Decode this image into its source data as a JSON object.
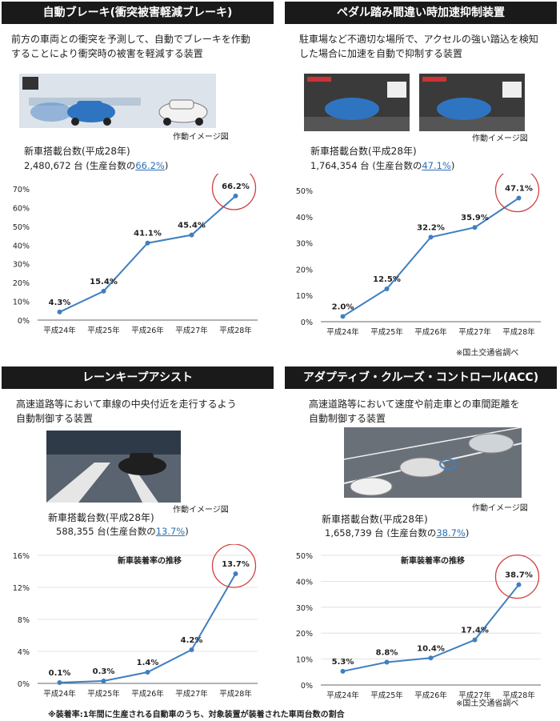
{
  "panels": [
    {
      "id": "aeb",
      "title": "自動ブレーキ(衝突被害軽減ブレーキ)",
      "desc": [
        "前方の車両との衝突を予測して、自動でブレーキを作動",
        "することにより衝突時の被害を軽減する装置"
      ],
      "illustration_caption": "作動イメージ図",
      "units_label": "新車搭載台数(平成28年)",
      "units_value": "2,480,672 台 (生産台数の",
      "units_pct": "66.2%",
      "units_close": ")",
      "source_note": ""
    },
    {
      "id": "pedal",
      "title": "ペダル踏み間違い時加速抑制装置",
      "desc": [
        "駐車場など不適切な場所で、アクセルの強い踏込を検知",
        "した場合に加速を自動で抑制する装置"
      ],
      "illustration_caption": "作動イメージ図",
      "units_label": "新車搭載台数(平成28年)",
      "units_value": "1,764,354 台 (生産台数の",
      "units_pct": "47.1%",
      "units_close": ")",
      "source_note": "※国土交通省調べ"
    },
    {
      "id": "lka",
      "title": "レーンキープアシスト",
      "desc": [
        "高速道路等において車線の中央付近を走行するよう",
        "自動制御する装置"
      ],
      "illustration_caption": "作動イメージ図",
      "units_label": "新車搭載台数(平成28年)",
      "units_value": "588,355 台(生産台数の",
      "units_pct": "13.7%",
      "units_close": ")",
      "source_note": ""
    },
    {
      "id": "acc",
      "title": "アダプティブ・クルーズ・コントロール(ACC)",
      "desc": [
        "高速道路等において速度や前走車との車間距離を",
        "自動制御する装置"
      ],
      "illustration_caption": "作動イメージ図",
      "units_label": "新車搭載台数(平成28年)",
      "units_value": "1,658,739 台 (生産台数の",
      "units_pct": "38.7%",
      "units_close": ")",
      "source_note": "※国土交通省調べ"
    }
  ],
  "footnote": "※装着率:1年間に生産される自動車のうち、対象装置が装着された車両台数の割合",
  "colors": {
    "line": "#3f7fc0",
    "highlight_circle": "#d04040",
    "header_bg": "#1a1a1a",
    "grid": "#d9d9d9"
  },
  "chart_data": [
    {
      "type": "line",
      "title": "",
      "categories": [
        "平成24年",
        "平成25年",
        "平成26年",
        "平成27年",
        "平成28年"
      ],
      "values": [
        4.3,
        15.4,
        41.1,
        45.4,
        66.2
      ],
      "value_labels": [
        "4.3%",
        "15.4%",
        "41.1%",
        "45.4%",
        "66.2%"
      ],
      "ylim": [
        0,
        70
      ],
      "yticks": [
        "0%",
        "10%",
        "20%",
        "30%",
        "40%",
        "50%",
        "60%",
        "70%"
      ],
      "grid": false,
      "highlight_index": 4
    },
    {
      "type": "line",
      "title": "",
      "categories": [
        "平成24年",
        "平成25年",
        "平成26年",
        "平成27年",
        "平成28年"
      ],
      "values": [
        2.0,
        12.5,
        32.2,
        35.9,
        47.1
      ],
      "value_labels": [
        "2.0%",
        "12.5%",
        "32.2%",
        "35.9%",
        "47.1%"
      ],
      "ylim": [
        0,
        50
      ],
      "yticks": [
        "0%",
        "10%",
        "20%",
        "30%",
        "40%",
        "50%"
      ],
      "grid": false,
      "highlight_index": 4
    },
    {
      "type": "line",
      "title": "新車装着率の推移",
      "categories": [
        "平成24年",
        "平成25年",
        "平成26年",
        "平成27年",
        "平成28年"
      ],
      "values": [
        0.1,
        0.3,
        1.4,
        4.2,
        13.7
      ],
      "value_labels": [
        "0.1%",
        "0.3%",
        "1.4%",
        "4.2%",
        "13.7%"
      ],
      "ylim": [
        0,
        16
      ],
      "yticks": [
        "0%",
        "4%",
        "8%",
        "12%",
        "16%"
      ],
      "grid": true,
      "highlight_index": 4
    },
    {
      "type": "line",
      "title": "新車装着率の推移",
      "categories": [
        "平成24年",
        "平成25年",
        "平成26年",
        "平成27年",
        "平成28年"
      ],
      "values": [
        5.3,
        8.8,
        10.4,
        17.4,
        38.7
      ],
      "value_labels": [
        "5.3%",
        "8.8%",
        "10.4%",
        "17.4%",
        "38.7%"
      ],
      "ylim": [
        0,
        50
      ],
      "yticks": [
        "0%",
        "10%",
        "20%",
        "30%",
        "40%",
        "50%"
      ],
      "grid": true,
      "highlight_index": 4
    }
  ]
}
